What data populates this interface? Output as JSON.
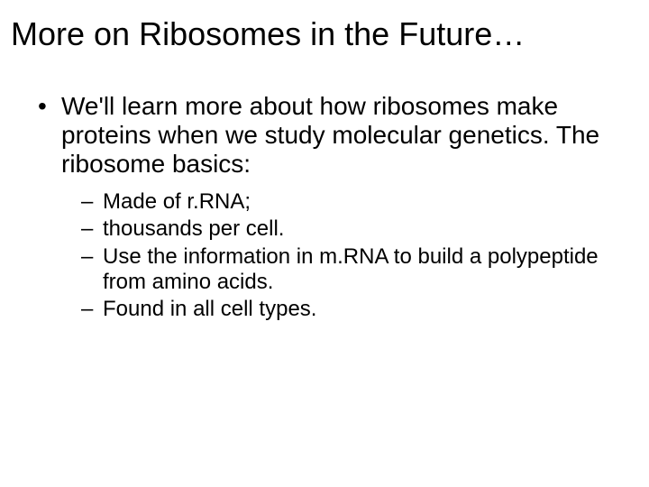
{
  "slide": {
    "title": "More on Ribosomes in the Future…",
    "title_fontsize": 36,
    "body_fontsize_l1": 28,
    "body_fontsize_l2": 24,
    "background_color": "#ffffff",
    "text_color": "#000000",
    "font_family": "Arial",
    "bullets": [
      {
        "text": "We'll learn more about how ribosomes make proteins when we study molecular genetics.  The ribosome basics:",
        "sub": [
          "Made of r.RNA;",
          "thousands per cell.",
          "Use the information in m.RNA to build a polypeptide from amino acids.",
          "Found in all cell types."
        ]
      }
    ]
  }
}
